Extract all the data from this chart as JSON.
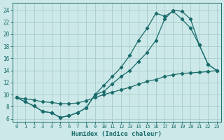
{
  "xlabel": "Humidex (Indice chaleur)",
  "ylabel": "",
  "bg_color": "#cce8e8",
  "grid_color": "#aacccc",
  "line_color": "#1a6b6b",
  "xlim": [
    -0.5,
    23.5
  ],
  "ylim": [
    5.5,
    25.2
  ],
  "xticks": [
    0,
    1,
    2,
    3,
    4,
    5,
    6,
    7,
    8,
    9,
    10,
    11,
    12,
    13,
    14,
    15,
    16,
    17,
    18,
    19,
    20,
    21,
    22,
    23
  ],
  "yticks": [
    6,
    8,
    10,
    12,
    14,
    16,
    18,
    20,
    22,
    24
  ],
  "line1": {
    "x": [
      0,
      1,
      2,
      3,
      4,
      5,
      6,
      7,
      8,
      9,
      10,
      11,
      12,
      13,
      14,
      15,
      16,
      17,
      18,
      19,
      20,
      21,
      22,
      23
    ],
    "y": [
      9.5,
      8.8,
      8.1,
      7.2,
      7.0,
      6.2,
      6.5,
      7.0,
      7.8,
      10.0,
      11.5,
      13.0,
      14.5,
      16.5,
      19.0,
      21.0,
      23.5,
      23.0,
      23.8,
      22.5,
      21.0,
      18.2,
      15.0,
      14.0
    ]
  },
  "line2": {
    "x": [
      0,
      1,
      2,
      3,
      4,
      5,
      6,
      7,
      8,
      9,
      10,
      11,
      12,
      13,
      14,
      15,
      16,
      17,
      18,
      19,
      20,
      21,
      22,
      23
    ],
    "y": [
      9.5,
      8.8,
      8.1,
      7.2,
      7.0,
      6.2,
      6.5,
      7.0,
      7.8,
      10.0,
      10.5,
      11.8,
      13.0,
      14.0,
      15.5,
      17.0,
      19.0,
      22.5,
      24.0,
      23.8,
      22.5,
      18.2,
      15.0,
      14.0
    ]
  },
  "line3": {
    "x": [
      0,
      1,
      2,
      3,
      4,
      5,
      6,
      7,
      8,
      9,
      10,
      11,
      12,
      13,
      14,
      15,
      16,
      17,
      18,
      19,
      20,
      21,
      22,
      23
    ],
    "y": [
      9.5,
      9.3,
      9.1,
      8.8,
      8.7,
      8.5,
      8.5,
      8.6,
      9.0,
      9.5,
      10.0,
      10.4,
      10.8,
      11.2,
      11.7,
      12.2,
      12.5,
      13.0,
      13.3,
      13.5,
      13.6,
      13.7,
      13.8,
      14.0
    ]
  }
}
